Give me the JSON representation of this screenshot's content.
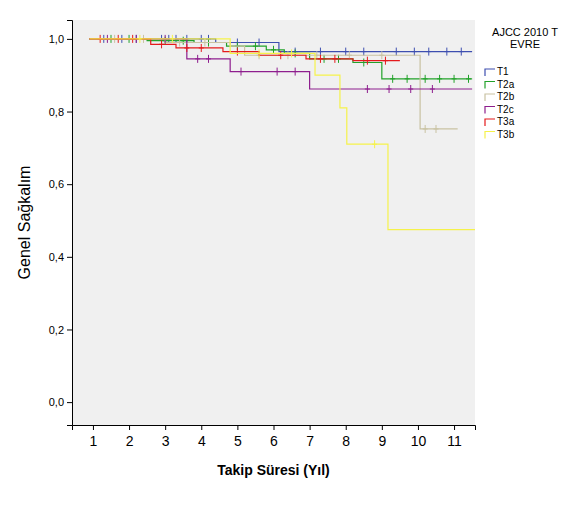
{
  "chart_data": {
    "type": "step",
    "x_label": "Takip Süresi (Yıl)",
    "y_label": "Genel Sağkalım",
    "legend_title": [
      "AJCC 2010 T",
      "EVRE"
    ],
    "legend": "right",
    "xlim": [
      0.42,
      11.58
    ],
    "ylim": [
      -0.063,
      1.052
    ],
    "xticks": [
      1,
      2,
      3,
      4,
      5,
      6,
      7,
      8,
      9,
      10,
      11
    ],
    "yticks": [
      {
        "value": 0,
        "label": "0,0"
      },
      {
        "value": 0.2,
        "label": "0,2"
      },
      {
        "value": 0.4,
        "label": "0,4"
      },
      {
        "value": 0.6,
        "label": "0,6"
      },
      {
        "value": 0.8,
        "label": "0,8"
      },
      {
        "value": 1,
        "label": "1,0"
      }
    ],
    "grid": false,
    "series": [
      {
        "name": "T1",
        "color": "#3e4fb0",
        "marker": "plus",
        "x": [
          0.9,
          4.4,
          6.15,
          11.5
        ],
        "values": [
          1,
          0.99,
          0.965,
          0.965
        ],
        "censor_x": [
          1.3,
          1.8,
          2.2,
          2.9,
          3.1,
          3.3,
          3.6,
          4.0,
          4.2,
          5.0,
          5.6,
          6.6,
          7.3,
          8.0,
          8.5,
          9.4,
          9.9,
          10.3,
          10.8,
          11.2
        ],
        "censor_values": [
          1,
          1,
          1,
          1,
          1,
          1,
          1,
          1,
          1,
          0.99,
          0.99,
          0.965,
          0.965,
          0.965,
          0.965,
          0.965,
          0.965,
          0.965,
          0.965,
          0.965
        ]
      },
      {
        "name": "T2a",
        "color": "#22a22a",
        "marker": "plus",
        "x": [
          0.9,
          2.5,
          3.8,
          4.7,
          5.8,
          6.3,
          7.0,
          8.2,
          9.0,
          11.5
        ],
        "values": [
          1,
          0.995,
          0.99,
          0.98,
          0.97,
          0.96,
          0.945,
          0.935,
          0.89,
          0.89
        ],
        "censor_x": [
          1.5,
          2.0,
          3.0,
          3.5,
          4.2,
          5.0,
          5.5,
          6.0,
          6.6,
          7.4,
          7.8,
          8.5,
          9.3,
          9.7,
          10.2,
          10.6,
          11.0,
          11.4
        ],
        "censor_values": [
          1,
          1,
          0.995,
          0.995,
          0.99,
          0.98,
          0.98,
          0.97,
          0.96,
          0.945,
          0.945,
          0.935,
          0.89,
          0.89,
          0.89,
          0.89,
          0.89,
          0.89
        ]
      },
      {
        "name": "T2b",
        "color": "#c9c2a2",
        "marker": "plus",
        "x": [
          0.9,
          3.0,
          4.8,
          5.2,
          10.06,
          11.1
        ],
        "values": [
          1,
          0.99,
          0.98,
          0.955,
          0.752,
          0.752
        ],
        "censor_x": [
          1.6,
          2.4,
          3.4,
          4.1,
          5.6,
          6.4,
          7.2,
          8.1,
          9.0,
          10.2,
          10.5
        ],
        "censor_values": [
          1,
          1,
          0.99,
          0.99,
          0.955,
          0.955,
          0.955,
          0.955,
          0.955,
          0.752,
          0.752
        ]
      },
      {
        "name": "T2c",
        "color": "#8e1e8e",
        "marker": "plus",
        "x": [
          0.9,
          3.6,
          4.8,
          7.0,
          11.5
        ],
        "values": [
          1,
          0.945,
          0.91,
          0.862,
          0.862
        ],
        "censor_x": [
          1.4,
          2.2,
          3.0,
          3.9,
          4.2,
          5.1,
          6.1,
          6.6,
          8.6,
          9.2,
          9.8,
          10.4
        ],
        "censor_values": [
          1,
          1,
          1,
          0.945,
          0.945,
          0.91,
          0.91,
          0.91,
          0.862,
          0.862,
          0.862,
          0.862
        ]
      },
      {
        "name": "T3a",
        "color": "#e41a1c",
        "marker": "plus",
        "x": [
          0.9,
          2.6,
          3.3,
          4.6,
          5.6,
          6.9,
          8.2,
          9.5
        ],
        "values": [
          1,
          0.985,
          0.975,
          0.965,
          0.955,
          0.945,
          0.94,
          0.94
        ],
        "censor_x": [
          1.2,
          1.7,
          2.1,
          2.9,
          3.6,
          4.0,
          5.0,
          6.2,
          7.3,
          7.7,
          8.6,
          9.1
        ],
        "censor_values": [
          1,
          1,
          1,
          0.985,
          0.975,
          0.975,
          0.965,
          0.955,
          0.945,
          0.945,
          0.94,
          0.94
        ]
      },
      {
        "name": "T3b",
        "color": "#f5f24a",
        "marker": "plus",
        "x": [
          0.9,
          4.8,
          7.15,
          7.84,
          8.03,
          9.17,
          11.58
        ],
        "values": [
          1,
          0.96,
          0.9,
          0.81,
          0.71,
          0.475,
          0.475
        ],
        "censor_x": [
          2.3,
          3.2,
          5.6,
          6.5,
          8.8
        ],
        "censor_values": [
          1,
          1,
          0.96,
          0.96,
          0.71
        ]
      }
    ]
  }
}
